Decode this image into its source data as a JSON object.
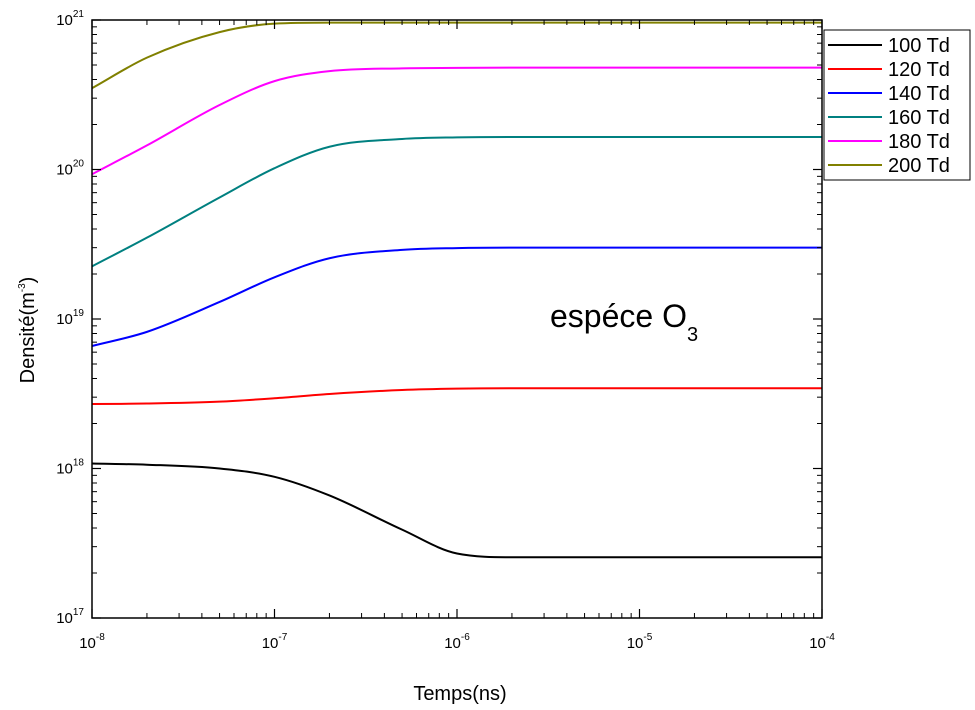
{
  "chart_data": {
    "type": "line",
    "xlabel": "Temps(ns)",
    "ylabel": {
      "base": "Densité(m",
      "exponent": "-3",
      "close": ")"
    },
    "annotation": {
      "text": "espéce O",
      "subscript": "3"
    },
    "x_scale": "log",
    "y_scale": "log",
    "xlim": [
      1e-08,
      0.0001
    ],
    "ylim": [
      1e+17,
      1e+21
    ],
    "x_ticks": [
      {
        "value": 1e-08,
        "base": "10",
        "exponent": "-8"
      },
      {
        "value": 1e-07,
        "base": "10",
        "exponent": "-7"
      },
      {
        "value": 1e-06,
        "base": "10",
        "exponent": "-6"
      },
      {
        "value": 1e-05,
        "base": "10",
        "exponent": "-5"
      },
      {
        "value": 0.0001,
        "base": "10",
        "exponent": "-4"
      }
    ],
    "y_ticks": [
      {
        "value": 1e+17,
        "base": "10",
        "exponent": "17"
      },
      {
        "value": 1e+18,
        "base": "10",
        "exponent": "18"
      },
      {
        "value": 1e+19,
        "base": "10",
        "exponent": "19"
      },
      {
        "value": 1e+20,
        "base": "10",
        "exponent": "20"
      },
      {
        "value": 1e+21,
        "base": "10",
        "exponent": "21"
      }
    ],
    "grid": false,
    "legend_position": "top-right",
    "x": [
      1e-08,
      2e-08,
      5e-08,
      1e-07,
      2e-07,
      5e-07,
      1e-06,
      2e-06,
      5e-06,
      1e-05,
      0.0001
    ],
    "series": [
      {
        "name": "100 Td",
        "color": "#000000",
        "values": [
          1.08e+18,
          1.06e+18,
          1e+18,
          8.8e+17,
          6.6e+17,
          3.9e+17,
          2.7e+17,
          2.55e+17,
          2.55e+17,
          2.55e+17,
          2.55e+17
        ]
      },
      {
        "name": "120 Td",
        "color": "#ff0000",
        "values": [
          2.7e+18,
          2.72e+18,
          2.8e+18,
          2.95e+18,
          3.15e+18,
          3.35e+18,
          3.42e+18,
          3.44e+18,
          3.44e+18,
          3.44e+18,
          3.44e+18
        ]
      },
      {
        "name": "140 Td",
        "color": "#0000ff",
        "values": [
          6.6e+18,
          8.2e+18,
          1.3e+19,
          1.9e+19,
          2.55e+19,
          2.9e+19,
          2.98e+19,
          3e+19,
          3e+19,
          3e+19,
          3e+19
        ]
      },
      {
        "name": "160 Td",
        "color": "#008080",
        "values": [
          2.25e+19,
          3.5e+19,
          6.5e+19,
          1.02e+20,
          1.42e+20,
          1.6e+20,
          1.64e+20,
          1.65e+20,
          1.65e+20,
          1.65e+20,
          1.65e+20
        ]
      },
      {
        "name": "180 Td",
        "color": "#ff00ff",
        "values": [
          9.3e+19,
          1.45e+20,
          2.7e+20,
          3.9e+20,
          4.55e+20,
          4.75e+20,
          4.78e+20,
          4.8e+20,
          4.8e+20,
          4.8e+20,
          4.8e+20
        ]
      },
      {
        "name": "200 Td",
        "color": "#808000",
        "values": [
          3.5e+20,
          5.6e+20,
          8.3e+20,
          9.45e+20,
          9.6e+20,
          9.6e+20,
          9.6e+20,
          9.6e+20,
          9.6e+20,
          9.6e+20,
          9.6e+20
        ]
      }
    ]
  }
}
